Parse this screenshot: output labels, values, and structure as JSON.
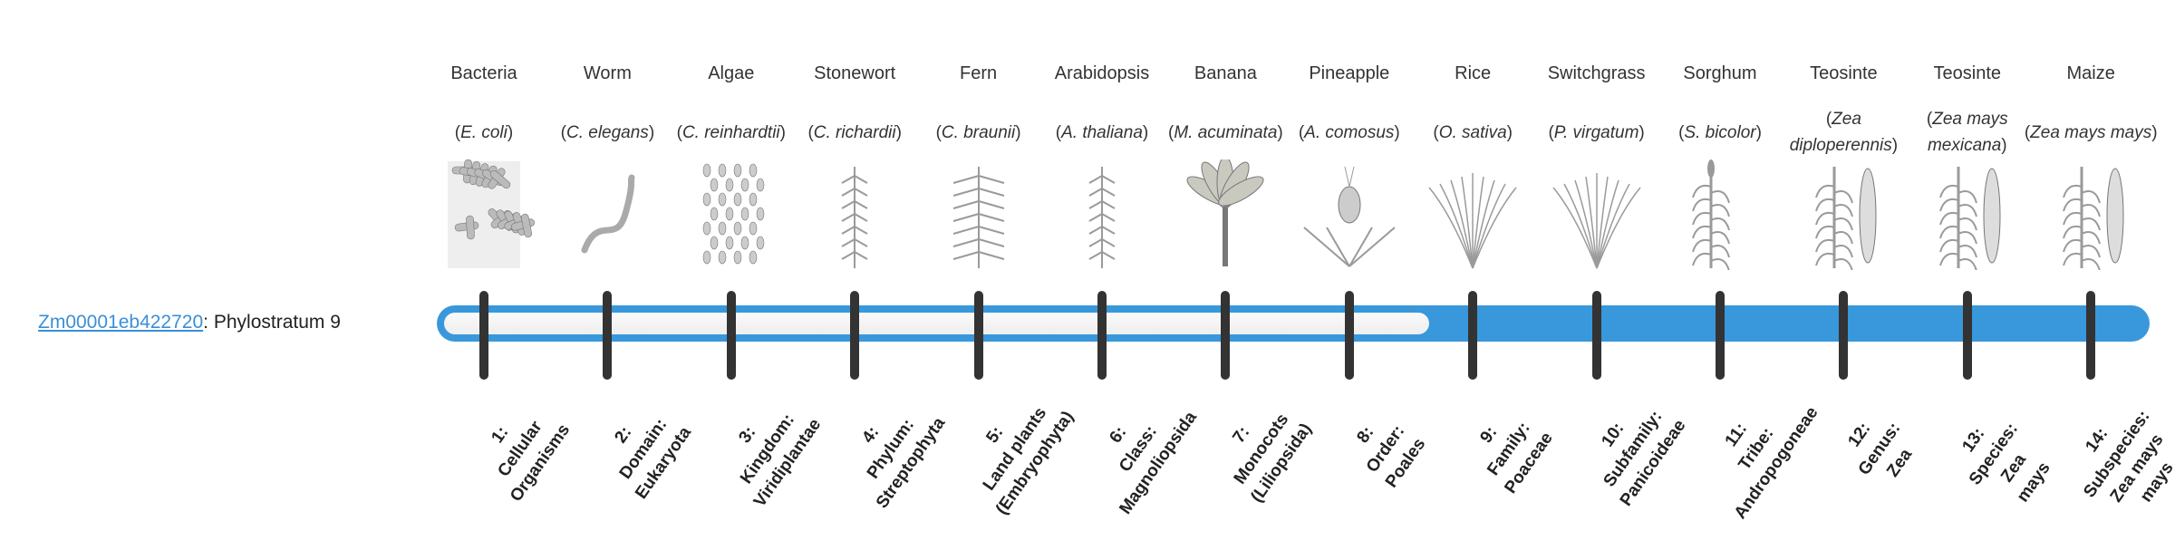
{
  "gene": {
    "id": "Zm00001eb422720",
    "separator": ":",
    "phylostratum_text": "Phylostratum 9",
    "phylostratum": 9
  },
  "colors": {
    "bar": "#3898db",
    "tick": "#333333",
    "link": "#3a8fd9"
  },
  "strata": [
    {
      "common": "Bacteria",
      "sci": "E. coli",
      "icon": "bacteria-icon",
      "rank": [
        "1:",
        "Cellular",
        "Organisms"
      ]
    },
    {
      "common": "Worm",
      "sci": "C. elegans",
      "icon": "worm-icon",
      "rank": [
        "2:",
        "Domain:",
        "Eukaryota"
      ]
    },
    {
      "common": "Algae",
      "sci": "C. reinhardtii",
      "icon": "algae-icon",
      "rank": [
        "3:",
        "Kingdom:",
        "Viridiplantae"
      ]
    },
    {
      "common": "Stonewort",
      "sci": "C. richardii",
      "icon": "stonewort-icon",
      "rank": [
        "4:",
        "Phylum:",
        "Streptophyta"
      ]
    },
    {
      "common": "Fern",
      "sci": "C. braunii",
      "icon": "fern-icon",
      "rank": [
        "5:",
        "Land plants",
        "(Embryophyta)"
      ]
    },
    {
      "common": "Arabidopsis",
      "sci": "A. thaliana",
      "icon": "arabidopsis-icon",
      "rank": [
        "6:",
        "Class:",
        "Magnoliopsida"
      ]
    },
    {
      "common": "Banana",
      "sci": "M. acuminata",
      "icon": "banana-icon",
      "rank": [
        "7:",
        "Monocots",
        "(Liliopsida)"
      ]
    },
    {
      "common": "Pineapple",
      "sci": "A. comosus",
      "icon": "pineapple-icon",
      "rank": [
        "8:",
        "Order:",
        "Poales"
      ]
    },
    {
      "common": "Rice",
      "sci": "O. sativa",
      "icon": "rice-icon",
      "rank": [
        "9:",
        "Family:",
        "Poaceae"
      ]
    },
    {
      "common": "Switchgrass",
      "sci": "P. virgatum",
      "icon": "switchgrass-icon",
      "rank": [
        "10:",
        "Subfamily:",
        "Panicoideae"
      ]
    },
    {
      "common": "Sorghum",
      "sci": "S. bicolor",
      "icon": "sorghum-icon",
      "rank": [
        "11:",
        "Tribe:",
        "Andropogoneae"
      ]
    },
    {
      "common": "Teosinte",
      "sci": "Zea diploperennis",
      "icon": "teosinte-icon",
      "rank": [
        "12:",
        "Genus:",
        "Zea"
      ]
    },
    {
      "common": "Teosinte",
      "sci": "Zea mays mexicana",
      "icon": "teosinte-icon",
      "rank": [
        "13:",
        "Species:",
        "Zea",
        "mays"
      ]
    },
    {
      "common": "Maize",
      "sci": "Zea mays mays",
      "icon": "maize-icon",
      "rank": [
        "14:",
        "Subspecies:",
        "Zea mays",
        "mays"
      ]
    }
  ]
}
